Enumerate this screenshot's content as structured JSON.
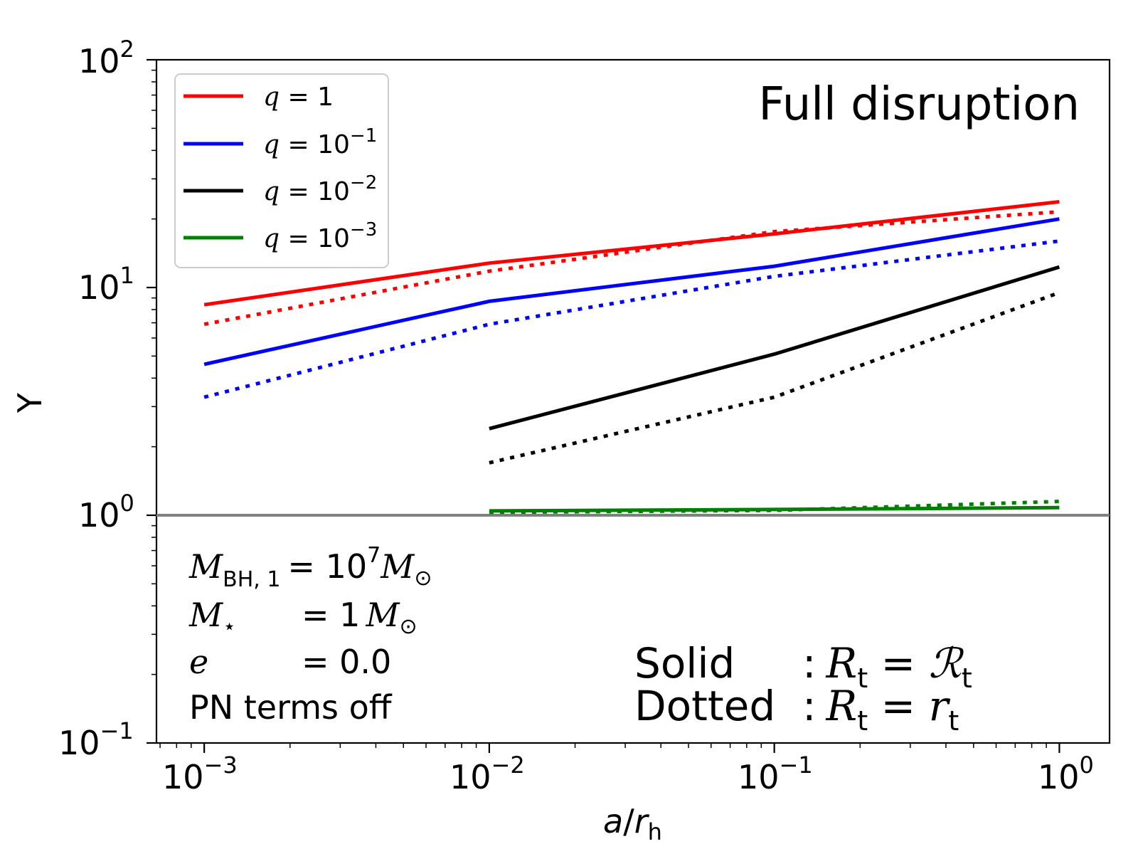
{
  "chart_data": {
    "type": "line",
    "xscale": "log",
    "yscale": "log",
    "xlim": [
      0.00068,
      1.5
    ],
    "ylim": [
      0.1,
      100
    ],
    "xlabel": "a/r_h",
    "ylabel": "Υ",
    "x_ticks": [
      0.001,
      0.01,
      0.1,
      1
    ],
    "y_ticks": [
      0.1,
      1,
      10,
      100
    ],
    "reference_line": {
      "y": 1,
      "color": "#808080"
    },
    "series": [
      {
        "name": "q = 1",
        "color": "#ff0000",
        "style": "solid",
        "x": [
          0.001,
          0.01,
          0.1,
          1
        ],
        "y": [
          8.4,
          12.8,
          17.2,
          23.8
        ]
      },
      {
        "color": "#ff0000",
        "style": "dotted",
        "x": [
          0.001,
          0.01,
          0.1,
          1
        ],
        "y": [
          6.9,
          11.8,
          17.6,
          21.5
        ]
      },
      {
        "name": "q = 10^-1",
        "color": "#0000ff",
        "style": "solid",
        "x": [
          0.001,
          0.01,
          0.1,
          1
        ],
        "y": [
          4.6,
          8.7,
          12.4,
          20.0
        ]
      },
      {
        "color": "#0000ff",
        "style": "dotted",
        "x": [
          0.001,
          0.01,
          0.1,
          1
        ],
        "y": [
          3.3,
          6.9,
          11.2,
          16.0
        ]
      },
      {
        "name": "q = 10^-2",
        "color": "#000000",
        "style": "solid",
        "x": [
          0.01,
          0.1,
          1
        ],
        "y": [
          2.4,
          5.1,
          12.3
        ]
      },
      {
        "color": "#000000",
        "style": "dotted",
        "x": [
          0.01,
          0.1,
          1
        ],
        "y": [
          1.7,
          3.3,
          9.5
        ]
      },
      {
        "name": "q = 10^-3",
        "color": "#008000",
        "style": "solid",
        "x": [
          0.01,
          0.1,
          1
        ],
        "y": [
          1.045,
          1.06,
          1.08
        ]
      },
      {
        "color": "#008000",
        "style": "dotted",
        "x": [
          0.01,
          0.1,
          1
        ],
        "y": [
          1.03,
          1.05,
          1.15
        ]
      }
    ],
    "annotations": {
      "title_in_plot": "Full disruption",
      "mass_bh": "M_BH,1 = 10^7 M⊙",
      "mass_star": "M⋆ = 1 M⊙",
      "eccentricity": "e = 0.0",
      "pn": "PN terms off",
      "solid": "Solid : R_t = ℛ_t",
      "dotted": "Dotted : R_t = r_t"
    },
    "legend_position": "upper-left"
  },
  "labels": {
    "x_ticks": [
      {
        "base": "10",
        "exp": "−3"
      },
      {
        "base": "10",
        "exp": "−2"
      },
      {
        "base": "10",
        "exp": "−1"
      },
      {
        "base": "10",
        "exp": "0"
      }
    ],
    "y_ticks": [
      {
        "base": "10",
        "exp": "−1"
      },
      {
        "base": "10",
        "exp": "0"
      },
      {
        "base": "10",
        "exp": "1"
      },
      {
        "base": "10",
        "exp": "2"
      }
    ],
    "xlabel_a": "a",
    "xlabel_slash": "/",
    "xlabel_r": "r",
    "xlabel_sub": "h",
    "ylabel": "Υ",
    "full_disruption": "Full disruption",
    "legend": [
      {
        "q": "q",
        "eq": " = 1",
        "exp": ""
      },
      {
        "q": "q",
        "eq": " = 10",
        "exp": "−1"
      },
      {
        "q": "q",
        "eq": " = 10",
        "exp": "−2"
      },
      {
        "q": "q",
        "eq": " = 10",
        "exp": "−3"
      }
    ],
    "params": {
      "mbh_sym": "M",
      "mbh_sub": "BH, 1",
      "mbh_eq": "= 10",
      "mbh_exp": "7",
      "mbh_unit": "M",
      "mbh_unit_sub": "⊙",
      "mstar_sym": "M",
      "mstar_sub": "⋆",
      "mstar_eq": "= 1",
      "mstar_unit": "M",
      "mstar_unit_sub": "⊙",
      "e_sym": "e",
      "e_eq": "= 0.0",
      "pn": "PN terms off"
    },
    "style_legend": {
      "solid_word": "Solid",
      "solid_colon": ":",
      "solid_R": "R",
      "solid_sub": "t",
      "solid_eq": " = ",
      "solid_calR": "ℛ",
      "solid_calR_sub": "t",
      "dotted_word": "Dotted",
      "dotted_colon": ":",
      "dotted_R": "R",
      "dotted_sub": "t",
      "dotted_eq": " = ",
      "dotted_r": "r",
      "dotted_r_sub": "t"
    }
  }
}
